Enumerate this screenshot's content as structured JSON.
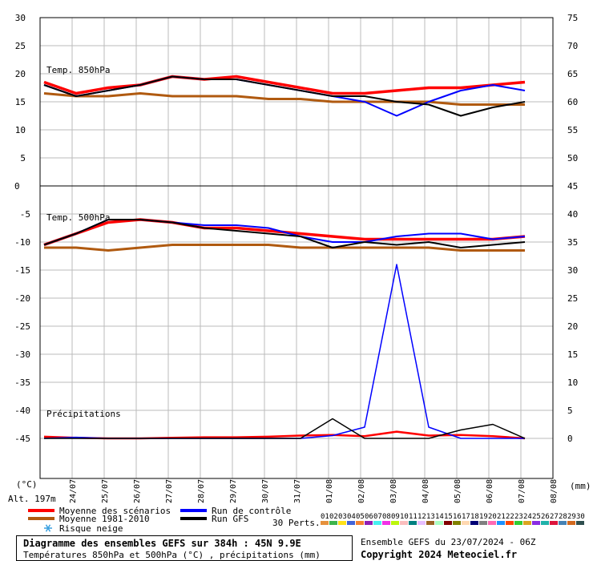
{
  "chart_data": [
    {
      "type": "line",
      "title": "Temp. 850hPa",
      "ylim": [
        0,
        30
      ],
      "y_ticks": [
        0,
        5,
        10,
        15,
        20,
        25,
        30
      ],
      "y2_ticks": [
        45,
        50,
        55,
        60,
        65,
        70,
        75
      ],
      "grid": true,
      "x": [
        "24/07",
        "25/07",
        "26/07",
        "27/07",
        "28/07",
        "29/07",
        "30/07",
        "31/07",
        "01/08",
        "02/08",
        "03/08",
        "04/08",
        "05/08",
        "06/08",
        "07/08",
        "08/08"
      ],
      "series": [
        {
          "name": "Moyenne des scénarios",
          "color": "#ff0000",
          "values": [
            18.5,
            16.5,
            17.5,
            18,
            19.5,
            19,
            19.5,
            18.5,
            17.5,
            16.5,
            16.5,
            17,
            17.5,
            17.5,
            18,
            18.5
          ]
        },
        {
          "name": "Moyenne 1981-2010",
          "color": "#b05a10",
          "values": [
            16.5,
            16,
            16,
            16.5,
            16,
            16,
            16,
            15.5,
            15.5,
            15,
            15,
            15,
            15,
            14.5,
            14.5,
            14.5
          ]
        },
        {
          "name": "Run de contrôle",
          "color": "#0000ff",
          "values": [
            18,
            16,
            17,
            18,
            19.5,
            19,
            19,
            18,
            17,
            16,
            15,
            12.5,
            15,
            17,
            18,
            17
          ]
        },
        {
          "name": "Run GFS",
          "color": "#000000",
          "values": [
            18,
            16,
            17,
            18,
            19.5,
            19,
            19,
            18,
            17,
            16,
            16,
            15,
            14.5,
            12.5,
            14,
            15
          ]
        }
      ]
    },
    {
      "type": "line",
      "title": "Temp. 500hPa",
      "ylim": [
        -45,
        0
      ],
      "y_ticks": [
        -5,
        -10,
        -15,
        -20,
        -25,
        -30,
        -35,
        -40,
        -45
      ],
      "y2_ticks": [
        45,
        40,
        35,
        30,
        25,
        20,
        15,
        10,
        5,
        0
      ],
      "grid": true,
      "x": [
        "24/07",
        "25/07",
        "26/07",
        "27/07",
        "28/07",
        "29/07",
        "30/07",
        "31/07",
        "01/08",
        "02/08",
        "03/08",
        "04/08",
        "05/08",
        "06/08",
        "07/08",
        "08/08"
      ],
      "series": [
        {
          "name": "Moyenne des scénarios",
          "color": "#ff0000",
          "values": [
            -10.5,
            -8.5,
            -6.5,
            -6,
            -6.5,
            -7.5,
            -7.5,
            -8,
            -8.5,
            -9,
            -9.5,
            -9.5,
            -9.5,
            -9.5,
            -9.5,
            -9
          ]
        },
        {
          "name": "Moyenne 1981-2010",
          "color": "#b05a10",
          "values": [
            -11,
            -11,
            -11.5,
            -11,
            -10.5,
            -10.5,
            -10.5,
            -10.5,
            -11,
            -11,
            -11,
            -11,
            -11,
            -11.5,
            -11.5,
            -11.5
          ]
        },
        {
          "name": "Run de contrôle",
          "color": "#0000ff",
          "values": [
            -10.5,
            -8.5,
            -6,
            -6,
            -6.5,
            -7,
            -7,
            -7.5,
            -9,
            -10,
            -10,
            -9,
            -8.5,
            -8.5,
            -9.5,
            -9
          ]
        },
        {
          "name": "Run GFS",
          "color": "#000000",
          "values": [
            -10.5,
            -8.5,
            -6,
            -6,
            -6.5,
            -7.5,
            -8,
            -8.5,
            -9,
            -11,
            -10,
            -10.5,
            -10,
            -11,
            -10.5,
            -10
          ]
        }
      ]
    },
    {
      "type": "line",
      "title": "Précipitations",
      "unit": "(mm)",
      "x": [
        "24/07",
        "25/07",
        "26/07",
        "27/07",
        "28/07",
        "29/07",
        "30/07",
        "31/07",
        "01/08",
        "02/08",
        "03/08",
        "04/08",
        "05/08",
        "06/08",
        "07/08",
        "08/08"
      ],
      "series": [
        {
          "name": "Moyenne des scénarios",
          "color": "#ff0000",
          "values": [
            0.3,
            0.1,
            0,
            0,
            0.1,
            0.2,
            0.2,
            0.3,
            0.5,
            0.6,
            0.4,
            1.2,
            0.5,
            0.6,
            0.4,
            0
          ]
        },
        {
          "name": "Run de contrôle",
          "color": "#0000ff",
          "values": [
            0,
            0.2,
            0,
            0,
            0,
            0,
            0,
            0,
            0,
            0.5,
            2,
            31,
            2,
            0,
            0,
            0
          ]
        },
        {
          "name": "Run GFS",
          "color": "#000000",
          "values": [
            0,
            0,
            0,
            0,
            0,
            0,
            0,
            0,
            0,
            3.5,
            0,
            0,
            0,
            1.5,
            2.5,
            0
          ]
        }
      ]
    }
  ],
  "labels": {
    "c_unit": "(°C)",
    "alt": "Alt. 197m",
    "mm_unit": "(mm)",
    "zero_label": "0",
    "perts": "30 Perts."
  },
  "legend": {
    "mean": "Moyenne des scénarios",
    "clim": "Moyenne 1981-2010",
    "snow": "Risque neige",
    "control": "Run de contrôle",
    "gfs": "Run GFS"
  },
  "perturbations": [
    "01",
    "02",
    "03",
    "04",
    "05",
    "06",
    "07",
    "08",
    "09",
    "10",
    "11",
    "12",
    "13",
    "14",
    "15",
    "16",
    "17",
    "18",
    "19",
    "20",
    "21",
    "22",
    "23",
    "24",
    "25",
    "26",
    "27",
    "28",
    "29",
    "30"
  ],
  "pert_colors": [
    "#e6913c",
    "#3cb44b",
    "#ffe119",
    "#4363d8",
    "#f58231",
    "#911eb4",
    "#46f0f0",
    "#f032e6",
    "#bcf60c",
    "#fabebe",
    "#008080",
    "#e6beff",
    "#9a6324",
    "#aaffc3",
    "#800000",
    "#808000",
    "#ffd8b1",
    "#000075",
    "#808080",
    "#ff69b4",
    "#1e90ff",
    "#ff4500",
    "#32cd32",
    "#daa520",
    "#8a2be2",
    "#20b2aa",
    "#dc143c",
    "#4682b4",
    "#d2691e",
    "#2f4f4f"
  ],
  "footer": {
    "title": "Diagramme des ensembles GEFS sur 384h : 45N 9.9E",
    "subtitle": "Températures 850hPa et 500hPa (°C) , précipitations (mm)",
    "ensemble": "Ensemble GEFS du 23/07/2024 - 06Z",
    "copyright": "Copyright 2024 Meteociel.fr"
  }
}
